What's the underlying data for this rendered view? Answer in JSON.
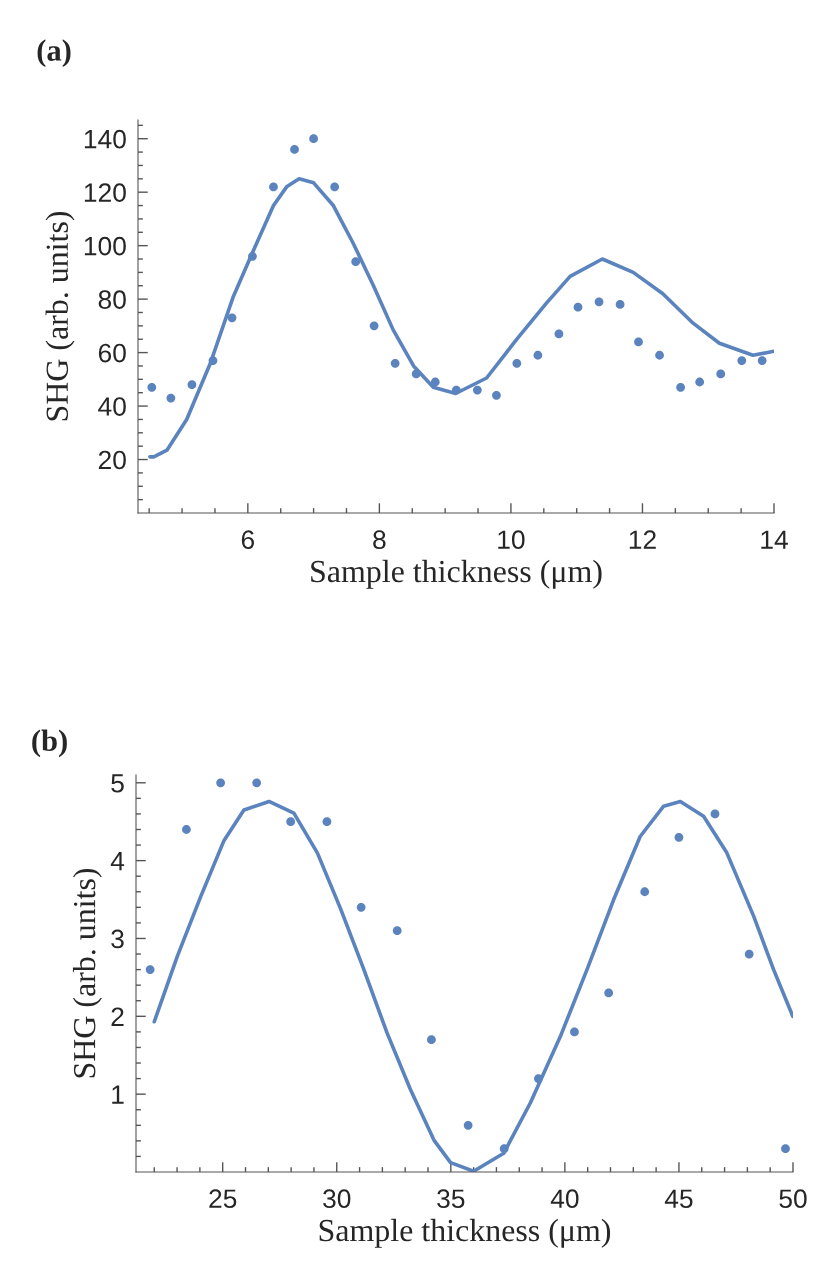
{
  "chart_data": [
    {
      "type": "scatter",
      "title": "(a)",
      "xlabel": "Sample thickness (μm)",
      "ylabel": "SHG (arb. units)",
      "xlim": [
        4.33,
        14
      ],
      "ylim": [
        0,
        147
      ],
      "xticks": [
        {
          "value": 4.5,
          "label": null
        },
        {
          "value": 5,
          "label": null
        },
        {
          "value": 5.5,
          "label": null
        },
        6,
        {
          "value": 6.5,
          "label": null
        },
        {
          "value": 7,
          "label": null
        },
        {
          "value": 7.5,
          "label": null
        },
        8,
        {
          "value": 8.5,
          "label": null
        },
        {
          "value": 9,
          "label": null
        },
        {
          "value": 9.5,
          "label": null
        },
        10,
        {
          "value": 10.5,
          "label": null
        },
        {
          "value": 11,
          "label": null
        },
        {
          "value": 11.5,
          "label": null
        },
        12,
        {
          "value": 12.5,
          "label": null
        },
        {
          "value": 13,
          "label": null
        },
        {
          "value": 13.5,
          "label": null
        },
        14
      ],
      "yticks": [
        {
          "value": 5,
          "label": null
        },
        {
          "value": 10,
          "label": null
        },
        {
          "value": 15,
          "label": null
        },
        20,
        {
          "value": 25,
          "label": null
        },
        {
          "value": 30,
          "label": null
        },
        {
          "value": 35,
          "label": null
        },
        40,
        {
          "value": 45,
          "label": null
        },
        {
          "value": 50,
          "label": null
        },
        {
          "value": 55,
          "label": null
        },
        60,
        {
          "value": 65,
          "label": null
        },
        {
          "value": 70,
          "label": null
        },
        {
          "value": 75,
          "label": null
        },
        80,
        {
          "value": 85,
          "label": null
        },
        {
          "value": 90,
          "label": null
        },
        {
          "value": 95,
          "label": null
        },
        100,
        {
          "value": 105,
          "label": null
        },
        {
          "value": 110,
          "label": null
        },
        {
          "value": 115,
          "label": null
        },
        120,
        {
          "value": 125,
          "label": null
        },
        {
          "value": 130,
          "label": null
        },
        {
          "value": 135,
          "label": null
        },
        140,
        {
          "value": 145,
          "label": null
        }
      ],
      "grid": false,
      "legend": false,
      "series": [
        {
          "marker": "circle",
          "color": "#5b84bf",
          "x": [
            4.54,
            4.83,
            5.15,
            5.47,
            5.76,
            6.07,
            6.39,
            6.71,
            7.0,
            7.32,
            7.64,
            7.92,
            8.24,
            8.56,
            8.85,
            9.17,
            9.49,
            9.78,
            10.09,
            10.41,
            10.73,
            11.02,
            11.34,
            11.66,
            11.94,
            12.26,
            12.58,
            12.87,
            13.19,
            13.51,
            13.82
          ],
          "values": [
            47,
            43,
            48,
            57,
            73,
            96,
            122,
            136,
            140,
            122,
            94,
            70,
            56,
            52,
            49,
            46,
            46,
            44,
            56,
            59,
            67,
            77,
            79,
            78,
            64,
            59,
            47,
            49,
            52,
            57,
            57
          ]
        },
        {
          "type": "line",
          "marker": "none",
          "line_style": "solid",
          "color": "#5b84bf",
          "x": [
            4.51,
            4.57,
            4.77,
            5.07,
            5.43,
            5.78,
            6.09,
            6.39,
            6.59,
            6.78,
            7.0,
            7.3,
            7.6,
            7.91,
            8.21,
            8.52,
            8.82,
            9.16,
            9.63,
            10.09,
            10.54,
            10.9,
            11.39,
            11.86,
            12.31,
            12.77,
            13.17,
            13.68,
            14.0
          ],
          "values": [
            21,
            21,
            23.5,
            35,
            56,
            81,
            98.5,
            115,
            122,
            125,
            123.5,
            115,
            101,
            85,
            68.5,
            55,
            47,
            44.7,
            50.5,
            65,
            78.5,
            88.5,
            95,
            90,
            82,
            71,
            63.5,
            59,
            60.5
          ]
        }
      ]
    },
    {
      "type": "scatter",
      "title": "(b)",
      "xlabel": "Sample thickness (μm)",
      "ylabel": "SHG (arb. units)",
      "xlim": [
        21.2,
        50
      ],
      "ylim": [
        0,
        5.1
      ],
      "xticks": [
        {
          "value": 22,
          "label": null
        },
        {
          "value": 23,
          "label": null
        },
        {
          "value": 24,
          "label": null
        },
        25,
        {
          "value": 26,
          "label": null
        },
        {
          "value": 27,
          "label": null
        },
        {
          "value": 28,
          "label": null
        },
        {
          "value": 29,
          "label": null
        },
        30,
        {
          "value": 31,
          "label": null
        },
        {
          "value": 32,
          "label": null
        },
        {
          "value": 33,
          "label": null
        },
        {
          "value": 34,
          "label": null
        },
        35,
        {
          "value": 36,
          "label": null
        },
        {
          "value": 37,
          "label": null
        },
        {
          "value": 38,
          "label": null
        },
        {
          "value": 39,
          "label": null
        },
        40,
        {
          "value": 41,
          "label": null
        },
        {
          "value": 42,
          "label": null
        },
        {
          "value": 43,
          "label": null
        },
        {
          "value": 44,
          "label": null
        },
        45,
        {
          "value": 46,
          "label": null
        },
        {
          "value": 47,
          "label": null
        },
        {
          "value": 48,
          "label": null
        },
        {
          "value": 49,
          "label": null
        },
        50
      ],
      "yticks": [
        {
          "value": 0.2,
          "label": null
        },
        {
          "value": 0.4,
          "label": null
        },
        {
          "value": 0.6,
          "label": null
        },
        {
          "value": 0.8,
          "label": null
        },
        1,
        {
          "value": 1.2,
          "label": null
        },
        {
          "value": 1.4,
          "label": null
        },
        {
          "value": 1.6,
          "label": null
        },
        {
          "value": 1.8,
          "label": null
        },
        2,
        {
          "value": 2.2,
          "label": null
        },
        {
          "value": 2.4,
          "label": null
        },
        {
          "value": 2.6,
          "label": null
        },
        {
          "value": 2.8,
          "label": null
        },
        3,
        {
          "value": 3.2,
          "label": null
        },
        {
          "value": 3.4,
          "label": null
        },
        {
          "value": 3.6,
          "label": null
        },
        {
          "value": 3.8,
          "label": null
        },
        4,
        {
          "value": 4.2,
          "label": null
        },
        {
          "value": 4.4,
          "label": null
        },
        {
          "value": 4.6,
          "label": null
        },
        {
          "value": 4.8,
          "label": null
        },
        5
      ],
      "grid": false,
      "legend": false,
      "series": [
        {
          "marker": "circle",
          "color": "#5b84bf",
          "x": [
            21.82,
            23.41,
            24.91,
            26.49,
            27.98,
            29.57,
            31.07,
            32.65,
            34.15,
            35.76,
            37.34,
            38.84,
            40.42,
            41.92,
            43.5,
            45.0,
            46.58,
            48.08,
            49.67
          ],
          "values": [
            2.6,
            4.4,
            5.0,
            5.0,
            4.5,
            4.5,
            3.4,
            3.1,
            1.7,
            0.6,
            0.3,
            1.2,
            1.8,
            2.3,
            3.6,
            4.3,
            4.6,
            2.8,
            0.3
          ]
        },
        {
          "type": "line",
          "marker": "none",
          "line_style": "solid",
          "color": "#5b84bf",
          "x": [
            22.0,
            23.01,
            24.04,
            25.06,
            25.93,
            27.03,
            28.12,
            29.15,
            30.17,
            31.19,
            32.2,
            33.23,
            34.26,
            34.99,
            36.0,
            37.32,
            38.49,
            39.8,
            40.97,
            42.14,
            43.3,
            44.33,
            45.06,
            46.08,
            47.1,
            48.27,
            49.15,
            49.99
          ],
          "values": [
            1.93,
            2.77,
            3.54,
            4.26,
            4.65,
            4.76,
            4.61,
            4.1,
            3.38,
            2.6,
            1.79,
            1.06,
            0.41,
            0.12,
            0.01,
            0.24,
            0.89,
            1.74,
            2.6,
            3.5,
            4.31,
            4.7,
            4.76,
            4.57,
            4.1,
            3.29,
            2.6,
            2.0
          ]
        }
      ]
    }
  ]
}
